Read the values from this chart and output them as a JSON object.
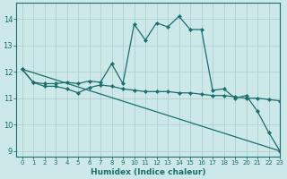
{
  "xlabel": "Humidex (Indice chaleur)",
  "bg_color": "#cce8e8",
  "grid_color": "#aacccc",
  "line_color": "#1a6e6e",
  "xlim": [
    -0.5,
    23
  ],
  "ylim": [
    8.8,
    14.6
  ],
  "yticks": [
    9,
    10,
    11,
    12,
    13,
    14
  ],
  "xticks": [
    0,
    1,
    2,
    3,
    4,
    5,
    6,
    7,
    8,
    9,
    10,
    11,
    12,
    13,
    14,
    15,
    16,
    17,
    18,
    19,
    20,
    21,
    22,
    23
  ],
  "series": [
    {
      "x": [
        0,
        1,
        2,
        3,
        4,
        5,
        6,
        7,
        8,
        9,
        10,
        11,
        12,
        13,
        14,
        15,
        16,
        17,
        18,
        19,
        20,
        21,
        22,
        23
      ],
      "y": [
        12.1,
        11.6,
        11.45,
        11.45,
        11.35,
        11.2,
        11.4,
        11.5,
        11.45,
        11.35,
        11.3,
        11.25,
        11.25,
        11.25,
        11.2,
        11.2,
        11.15,
        11.1,
        11.1,
        11.05,
        11.0,
        11.0,
        10.95,
        10.9
      ]
    },
    {
      "x": [
        0,
        1,
        2,
        3,
        4,
        5,
        6,
        7,
        8,
        9,
        10,
        11,
        12,
        13,
        14,
        15,
        16,
        17,
        18,
        19,
        20,
        21,
        22,
        23
      ],
      "y": [
        12.1,
        11.6,
        11.55,
        11.55,
        11.6,
        11.55,
        11.65,
        11.6,
        12.3,
        11.55,
        13.8,
        13.2,
        13.85,
        13.7,
        14.1,
        13.6,
        13.6,
        11.3,
        11.35,
        11.0,
        11.1,
        10.5,
        9.7,
        9.0
      ]
    },
    {
      "x": [
        0,
        23
      ],
      "y": [
        12.1,
        9.0
      ]
    }
  ]
}
